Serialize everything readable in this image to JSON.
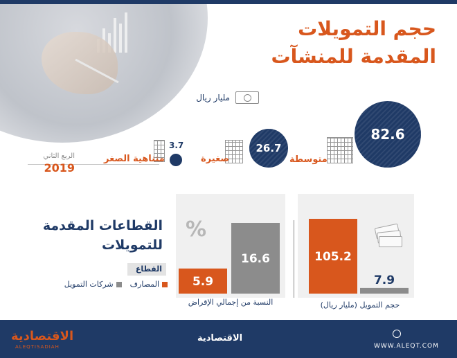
{
  "title": {
    "line1": "حجم التمويلات",
    "line2": "المقدمة للمنشآت"
  },
  "unit_label": "مليار ريال",
  "period": {
    "quarter": "الربع الثاني",
    "year": "2019"
  },
  "enterprise_sizes": [
    {
      "label": "متوسطة",
      "value": "82.6"
    },
    {
      "label": "صغيرة",
      "value": "26.7"
    },
    {
      "label": "متناهية الصغر",
      "value": "3.7"
    }
  ],
  "sectors_title": {
    "line1": "القطاعات المقدمة",
    "line2": "للتمويلات"
  },
  "legend": {
    "header": "القطاع",
    "items": [
      {
        "label": "المصارف",
        "color": "#d8571d"
      },
      {
        "label": "شركات التمويل",
        "color": "#8c8c8c"
      }
    ]
  },
  "chart_data": [
    {
      "type": "bar",
      "xlabel": "حجم التمويل (مليار ريال)",
      "categories": [
        "المصارف",
        "شركات التمويل"
      ],
      "values": [
        105.2,
        7.9
      ],
      "labels": [
        "105.2",
        "7.9"
      ],
      "colors": [
        "#d8571d",
        "#8c8c8c"
      ],
      "ylim": [
        0,
        105.2
      ]
    },
    {
      "type": "bar",
      "xlabel": "النسبة من إجمالي الإقراض",
      "categories": [
        "المصارف",
        "شركات التمويل"
      ],
      "values": [
        5.9,
        16.6
      ],
      "labels": [
        "5.9",
        "16.6"
      ],
      "colors": [
        "#d8571d",
        "#8c8c8c"
      ],
      "ylim": [
        0,
        16.6
      ]
    }
  ],
  "percent_symbol": "%",
  "footer": {
    "brand": "الاقتصادية",
    "brand_sub": "ALEQTISADIAH",
    "brand_mid": "الاقتصادية",
    "website": "WWW.ALEQT.COM"
  }
}
